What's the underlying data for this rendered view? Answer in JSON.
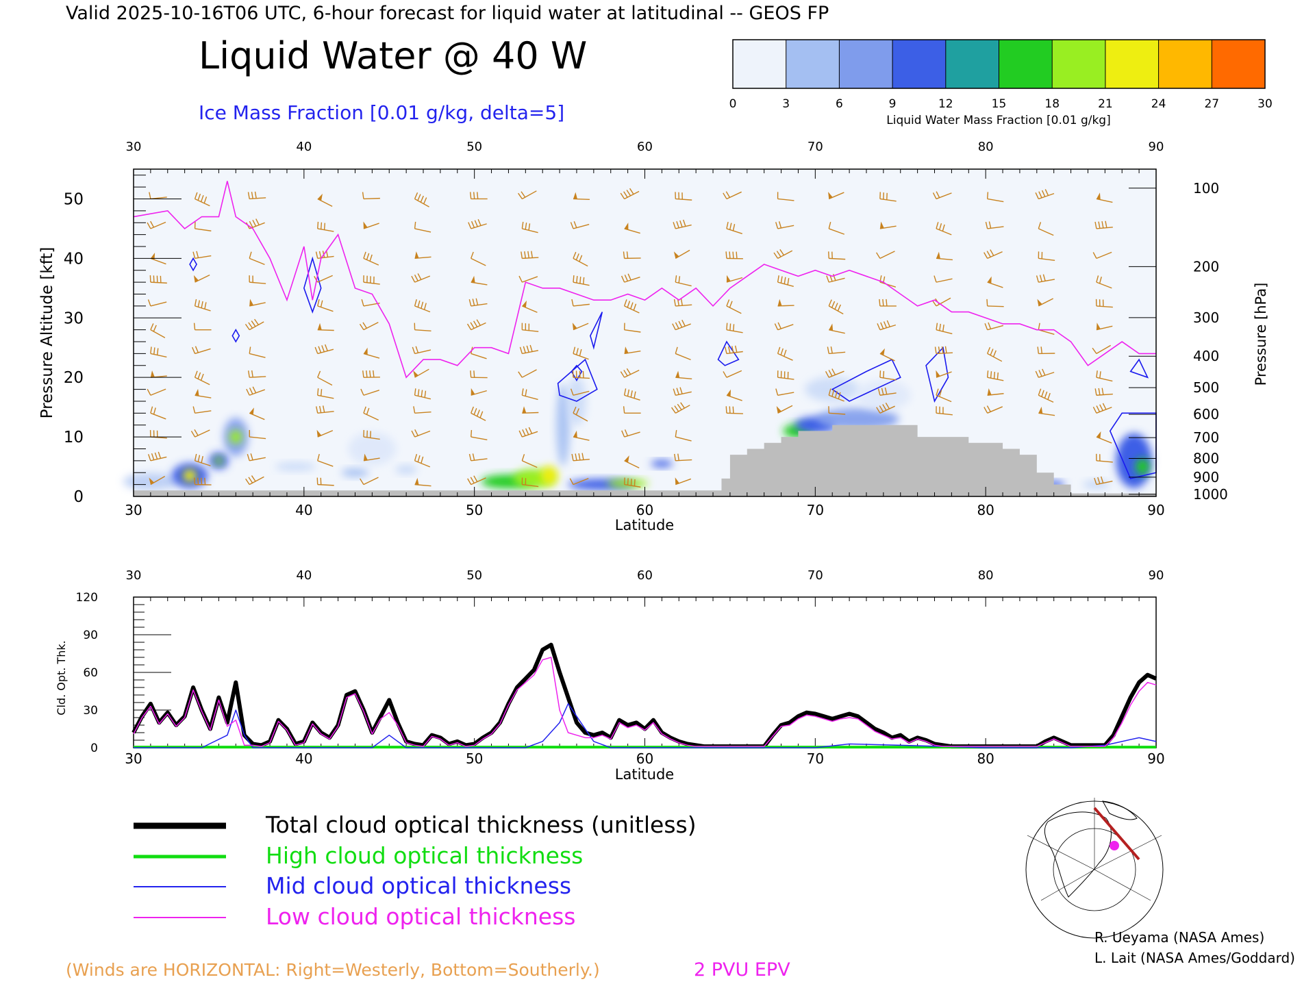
{
  "header": {
    "valid_line": "Valid 2025-10-16T06 UTC, 6-hour forecast for liquid water at latitudinal -- GEOS FP",
    "main_title": "Liquid Water @ 40 W",
    "subtitle": "Ice Mass Fraction [0.01 g/kg, delta=5]"
  },
  "colorbar": {
    "label": "Liquid Water Mass Fraction [0.01 g/kg]",
    "ticks": [
      "0",
      "3",
      "6",
      "9",
      "12",
      "15",
      "18",
      "21",
      "24",
      "27",
      "30"
    ],
    "colors": [
      "#f2f6fc",
      "#c6d8f7",
      "#a4bff2",
      "#7f9cec",
      "#3c5fe6",
      "#1fa0a0",
      "#22cc22",
      "#99ee22",
      "#eeee11",
      "#ffb800",
      "#ff6a00",
      "#ff2200"
    ]
  },
  "top_chart": {
    "xlabel": "Latitude",
    "ylabel_left": "Pressure Altitude [kft]",
    "ylabel_right": "Pressure [hPa]",
    "lat_ticks": [
      "30",
      "40",
      "50",
      "60",
      "70",
      "80",
      "90"
    ],
    "alt_ticks": [
      "0",
      "10",
      "20",
      "30",
      "40",
      "50"
    ],
    "pressure_ticks": [
      "100",
      "200",
      "300",
      "400",
      "500",
      "600",
      "700",
      "800",
      "900",
      "1000"
    ]
  },
  "chart_data": [
    {
      "type": "line",
      "title": "Liquid Water @ 40 W",
      "xlabel": "Latitude",
      "ylabel": "Pressure Altitude [kft]",
      "xlim": [
        30,
        90
      ],
      "ylim": [
        0,
        55
      ],
      "series": [
        {
          "name": "2 PVU EPV",
          "x": [
            30,
            32,
            33,
            34,
            35,
            35.5,
            36,
            37,
            38,
            39,
            40,
            40.5,
            41,
            42,
            43,
            44,
            45,
            46,
            47,
            48,
            49,
            50,
            51,
            52,
            53,
            54,
            55,
            56,
            57,
            58,
            59,
            60,
            61,
            62,
            63,
            64,
            65,
            66,
            67,
            68,
            69,
            70,
            71,
            72,
            73,
            74,
            75,
            76,
            77,
            78,
            79,
            80,
            81,
            82,
            83,
            84,
            85,
            86,
            87,
            88,
            89,
            90
          ],
          "y": [
            47,
            48,
            45,
            47,
            47,
            53,
            47,
            45,
            40,
            33,
            42,
            33,
            40,
            44,
            35,
            34,
            29,
            20,
            23,
            23,
            22,
            25,
            25,
            24,
            36,
            35,
            35,
            34,
            33,
            33,
            34,
            33,
            35,
            33,
            35,
            32,
            35,
            37,
            39,
            38,
            37,
            38,
            37,
            38,
            37,
            36,
            34,
            32,
            33,
            31,
            31,
            30,
            29,
            29,
            28,
            28,
            26,
            22,
            24,
            26,
            24,
            24
          ]
        },
        {
          "name": "Surface (kft)",
          "x": [
            30,
            40,
            50,
            64,
            64.5,
            65,
            66,
            67,
            68,
            69,
            70,
            71,
            72,
            75,
            76,
            78,
            79,
            80,
            81,
            82,
            83,
            84,
            85,
            90
          ],
          "y": [
            1,
            1,
            1,
            1,
            3,
            7,
            8,
            9,
            10,
            11,
            11,
            12,
            12,
            12,
            10,
            10,
            9,
            9,
            8,
            7,
            4,
            2,
            0.5,
            0.5
          ]
        }
      ]
    },
    {
      "type": "line",
      "xlabel": "Latitude",
      "ylabel": "Cld. Opt. Thk.",
      "xlim": [
        30,
        90
      ],
      "ylim": [
        0,
        120
      ],
      "yticks": [
        0,
        30,
        60,
        90,
        120
      ],
      "series": [
        {
          "name": "Total cloud optical thickness (unitless)",
          "x": [
            30,
            30.5,
            31,
            31.5,
            32,
            32.5,
            33,
            33.5,
            34,
            34.5,
            35,
            35.5,
            36,
            36.5,
            37,
            37.5,
            38,
            38.5,
            39,
            39.5,
            40,
            40.5,
            41,
            41.5,
            42,
            42.5,
            43,
            43.5,
            44,
            44.5,
            45,
            45.5,
            46,
            46.5,
            47,
            47.5,
            48,
            48.5,
            49,
            49.5,
            50,
            50.5,
            51,
            51.5,
            52,
            52.5,
            53,
            53.5,
            54,
            54.5,
            55,
            55.5,
            56,
            56.5,
            57,
            57.5,
            58,
            58.5,
            59,
            59.5,
            60,
            60.5,
            61,
            61.5,
            62,
            62.5,
            63,
            63.5,
            64,
            65,
            66,
            67,
            67.5,
            68,
            68.5,
            69,
            69.5,
            70,
            70.5,
            71,
            71.5,
            72,
            72.5,
            73,
            73.5,
            74,
            74.5,
            75,
            75.5,
            76,
            76.5,
            77,
            77.5,
            78,
            79,
            80,
            81,
            82,
            83,
            83.5,
            84,
            84.5,
            85,
            86,
            87,
            87.5,
            88,
            88.5,
            89,
            89.5,
            90
          ],
          "y": [
            12,
            25,
            35,
            20,
            28,
            18,
            25,
            48,
            30,
            15,
            40,
            20,
            52,
            10,
            3,
            2,
            5,
            22,
            15,
            3,
            5,
            20,
            12,
            8,
            18,
            42,
            45,
            30,
            12,
            25,
            38,
            20,
            5,
            3,
            2,
            10,
            8,
            3,
            5,
            2,
            3,
            8,
            12,
            20,
            35,
            48,
            55,
            62,
            78,
            82,
            60,
            40,
            20,
            12,
            10,
            12,
            8,
            22,
            18,
            20,
            15,
            22,
            12,
            8,
            5,
            3,
            2,
            1,
            1,
            1,
            1,
            1,
            10,
            18,
            20,
            25,
            28,
            27,
            25,
            23,
            25,
            27,
            25,
            20,
            15,
            12,
            8,
            10,
            5,
            8,
            6,
            3,
            2,
            1,
            1,
            1,
            1,
            1,
            1,
            5,
            8,
            5,
            2,
            2,
            2,
            10,
            25,
            40,
            52,
            58,
            55
          ]
        },
        {
          "name": "High cloud optical thickness",
          "x": [
            30,
            40,
            50,
            60,
            70,
            80,
            90
          ],
          "y": [
            0.5,
            0.5,
            0.5,
            0.5,
            0.5,
            0.5,
            0.5
          ]
        },
        {
          "name": "Mid cloud optical thickness",
          "x": [
            30,
            34,
            35.5,
            36,
            36.5,
            37,
            44,
            45,
            46,
            53,
            54,
            55,
            55.5,
            56,
            57,
            58,
            70,
            72,
            75,
            80,
            85,
            87,
            88,
            89,
            90
          ],
          "y": [
            0,
            0,
            10,
            30,
            10,
            0,
            0,
            10,
            0,
            0,
            5,
            20,
            35,
            25,
            5,
            0,
            0,
            3,
            2,
            0,
            0,
            2,
            5,
            8,
            5
          ]
        },
        {
          "name": "Low cloud optical thickness",
          "x": [
            30,
            30.5,
            31,
            31.5,
            32,
            32.5,
            33,
            33.5,
            34,
            34.5,
            35,
            35.5,
            36,
            36.5,
            37,
            37.5,
            38,
            38.5,
            39,
            39.5,
            40,
            40.5,
            41,
            41.5,
            42,
            42.5,
            43,
            43.5,
            44,
            44.5,
            45,
            45.5,
            46,
            46.5,
            47,
            47.5,
            48,
            48.5,
            49,
            49.5,
            50,
            50.5,
            51,
            51.5,
            52,
            52.5,
            53,
            53.5,
            54,
            54.5,
            55,
            55.5,
            56,
            56.5,
            57,
            57.5,
            58,
            58.5,
            59,
            59.5,
            60,
            60.5,
            61,
            61.5,
            62,
            62.5,
            63,
            63.5,
            64,
            65,
            66,
            67,
            67.5,
            68,
            68.5,
            69,
            69.5,
            70,
            70.5,
            71,
            71.5,
            72,
            72.5,
            73,
            73.5,
            74,
            74.5,
            75,
            75.5,
            76,
            76.5,
            77,
            77.5,
            78,
            79,
            80,
            81,
            82,
            83,
            83.5,
            84,
            84.5,
            85,
            86,
            87,
            87.5,
            88,
            88.5,
            89,
            89.5,
            90
          ],
          "y": [
            11,
            24,
            33,
            19,
            27,
            17,
            24,
            46,
            29,
            14,
            38,
            17,
            22,
            2,
            2,
            1,
            4,
            21,
            14,
            2,
            4,
            19,
            11,
            7,
            17,
            40,
            43,
            29,
            11,
            23,
            28,
            18,
            4,
            2,
            1,
            9,
            7,
            2,
            4,
            1,
            2,
            7,
            11,
            19,
            34,
            46,
            52,
            58,
            70,
            72,
            30,
            12,
            10,
            8,
            8,
            10,
            7,
            20,
            16,
            18,
            14,
            20,
            11,
            7,
            4,
            2,
            1,
            1,
            1,
            1,
            1,
            1,
            9,
            17,
            18,
            23,
            26,
            25,
            23,
            21,
            23,
            24,
            23,
            18,
            13,
            10,
            7,
            8,
            4,
            7,
            5,
            2,
            1,
            1,
            1,
            1,
            1,
            1,
            1,
            4,
            7,
            4,
            1,
            1,
            1,
            8,
            20,
            34,
            45,
            52,
            50
          ]
        }
      ]
    }
  ],
  "bottom_chart": {
    "xlabel": "Latitude",
    "ylabel": "Cld. Opt. Thk.",
    "lat_ticks": [
      "30",
      "40",
      "50",
      "60",
      "70",
      "80",
      "90"
    ],
    "y_ticks": [
      "0",
      "30",
      "60",
      "90",
      "120"
    ]
  },
  "legend": {
    "total": "Total cloud optical thickness (unitless)",
    "high": "High cloud optical thickness",
    "mid": "Mid cloud optical thickness",
    "low": "Low cloud optical thickness",
    "colors": {
      "total": "#000000",
      "high": "#11dd11",
      "mid": "#2222ee",
      "low": "#ee22ee"
    }
  },
  "footer": {
    "winds_note": "(Winds are HORIZONTAL: Right=Westerly, Bottom=Southerly.)",
    "epv_label": "2 PVU EPV",
    "credit1": "R. Ueyama (NASA Ames)",
    "credit2": "L. Lait (NASA Ames/Goddard)"
  },
  "colors": {
    "wind": "#c8821e",
    "epv": "#ee22ee",
    "ice_contour": "#1a1aee",
    "ground": "#bdbdbd"
  }
}
